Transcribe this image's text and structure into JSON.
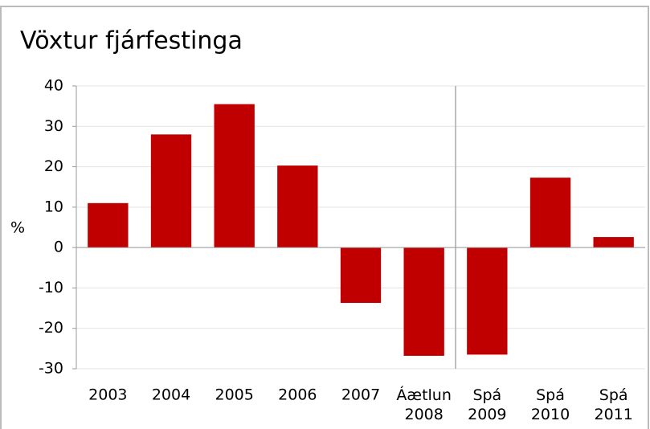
{
  "chart_data": {
    "type": "bar",
    "title": "Vöxtur fjárfestinga",
    "y_label": "%",
    "categories": [
      "2003",
      "2004",
      "2005",
      "2006",
      "2007",
      "Áætlun 2008",
      "Spá 2009",
      "Spá 2010",
      "Spá 2011"
    ],
    "values": [
      11,
      28,
      35.5,
      20.3,
      -13.7,
      -26.8,
      -26.5,
      17.3,
      2.6
    ],
    "color": "#c00000",
    "ylim": [
      -30,
      40
    ],
    "yticks": [
      40,
      30,
      20,
      10,
      0,
      -10,
      -20,
      -30
    ],
    "grid": true
  }
}
